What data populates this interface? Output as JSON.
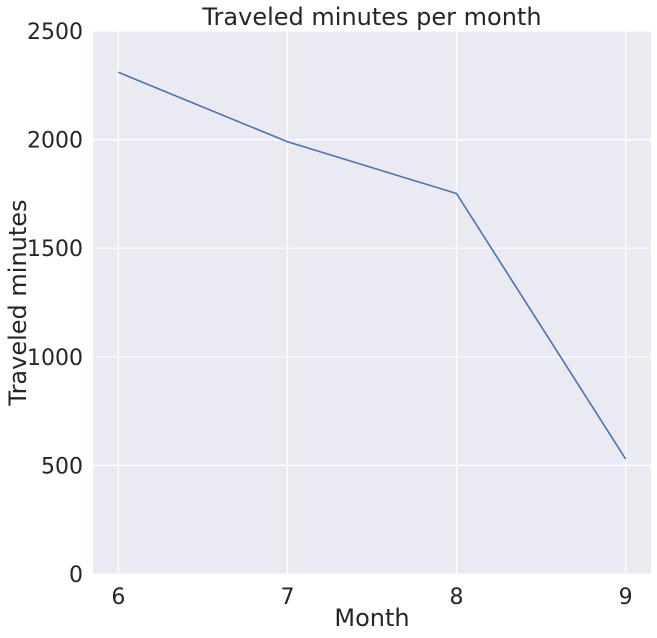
{
  "chart_data": {
    "type": "line",
    "title": "Traveled minutes per month",
    "xlabel": "Month",
    "ylabel": "Traveled minutes",
    "x": [
      6,
      7,
      8,
      9
    ],
    "series": [
      {
        "values": [
          2310,
          1990,
          1752,
          530
        ]
      }
    ],
    "xlim": [
      5.85,
      9.15
    ],
    "ylim": [
      0,
      2500
    ],
    "xticks": [
      "6",
      "7",
      "8",
      "9"
    ],
    "yticks": [
      "0",
      "500",
      "1000",
      "1500",
      "2000",
      "2500"
    ],
    "grid": true,
    "colors": {
      "background": "#EAEAF2",
      "grid": "#FFFFFF",
      "line": "#4C72B0",
      "text": "#262626"
    }
  }
}
